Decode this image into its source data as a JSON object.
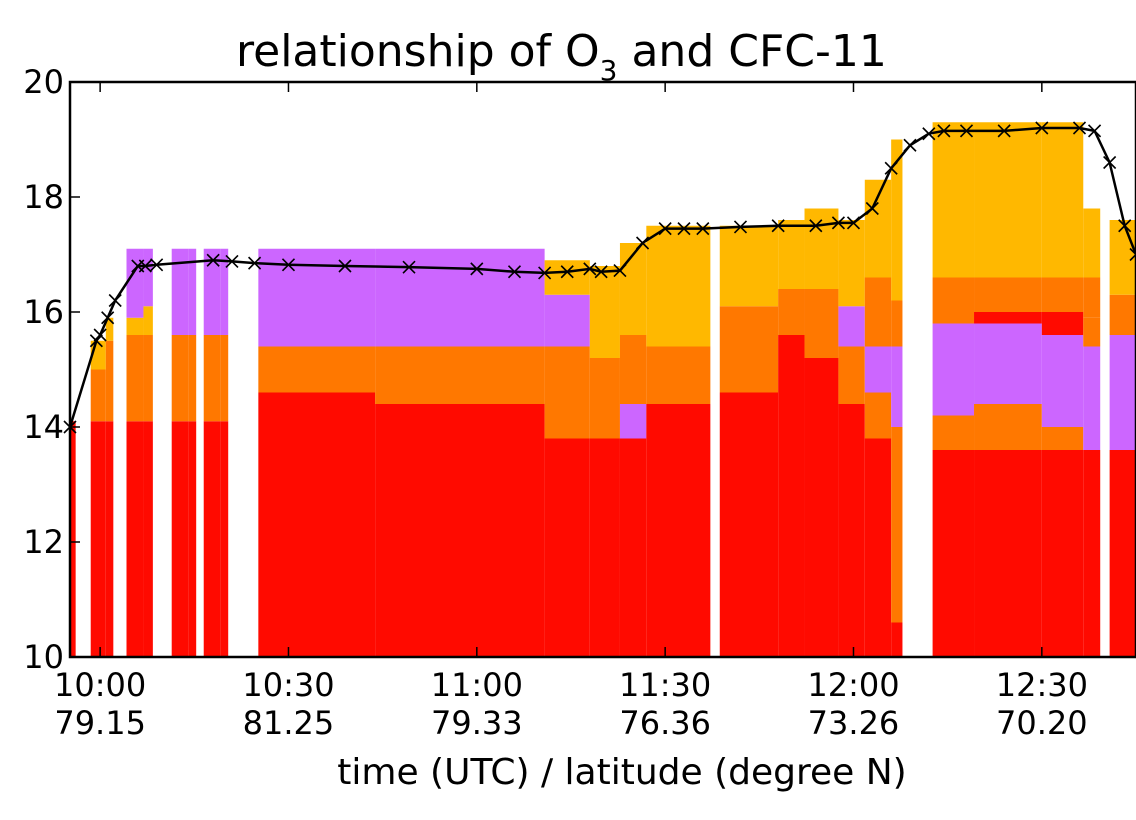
{
  "chart_data": {
    "type": "heatmap",
    "title": "relationship of O",
    "title_sub": "3",
    "title_tail": " and CFC-11",
    "xlabel": "time (UTC) / latitude (degree N)",
    "ylabel": "",
    "ylim": [
      10,
      20
    ],
    "xlim": [
      9.92,
      12.75
    ],
    "grid": false,
    "x_ticks": [
      {
        "x": 10.0,
        "time": "10:00",
        "lat": "79.15"
      },
      {
        "x": 10.5,
        "time": "10:30",
        "lat": "81.25"
      },
      {
        "x": 11.0,
        "time": "11:00",
        "lat": "79.33"
      },
      {
        "x": 11.5,
        "time": "11:30",
        "lat": "76.36"
      },
      {
        "x": 12.0,
        "time": "12:00",
        "lat": "73.26"
      },
      {
        "x": 12.5,
        "time": "12:30",
        "lat": "70.20"
      }
    ],
    "y_ticks": [
      {
        "y": 10,
        "label": "10"
      },
      {
        "y": 12,
        "label": "12"
      },
      {
        "y": 14,
        "label": "14"
      },
      {
        "y": 16,
        "label": "16"
      },
      {
        "y": 18,
        "label": "18"
      },
      {
        "y": 20,
        "label": "20"
      }
    ],
    "colors": {
      "red": "#ff0a00",
      "orange": "#ff7800",
      "violet": "#cc66ff",
      "amber": "#ffb800",
      "line": "#000000"
    },
    "columns": [
      {
        "x0": 9.92,
        "x1": 9.935,
        "layers": [
          {
            "to": 14.1,
            "color": "red"
          }
        ]
      },
      {
        "x0": 9.975,
        "x1": 10.015,
        "layers": [
          {
            "to": 14.1,
            "color": "red"
          },
          {
            "to": 15.0,
            "color": "orange"
          },
          {
            "to": 15.5,
            "color": "amber"
          }
        ]
      },
      {
        "x0": 10.015,
        "x1": 10.035,
        "layers": [
          {
            "to": 14.1,
            "color": "red"
          },
          {
            "to": 15.5,
            "color": "orange"
          },
          {
            "to": 15.9,
            "color": "amber"
          }
        ]
      },
      {
        "x0": 10.07,
        "x1": 10.115,
        "layers": [
          {
            "to": 14.1,
            "color": "red"
          },
          {
            "to": 15.6,
            "color": "orange"
          },
          {
            "to": 15.9,
            "color": "amber"
          },
          {
            "to": 17.1,
            "color": "violet"
          }
        ]
      },
      {
        "x0": 10.115,
        "x1": 10.14,
        "layers": [
          {
            "to": 14.1,
            "color": "red"
          },
          {
            "to": 15.6,
            "color": "orange"
          },
          {
            "to": 16.1,
            "color": "amber"
          },
          {
            "to": 17.1,
            "color": "violet"
          }
        ]
      },
      {
        "x0": 10.19,
        "x1": 10.235,
        "layers": [
          {
            "to": 14.1,
            "color": "red"
          },
          {
            "to": 15.6,
            "color": "orange"
          },
          {
            "to": 17.1,
            "color": "violet"
          }
        ]
      },
      {
        "x0": 10.235,
        "x1": 10.255,
        "layers": [
          {
            "to": 14.1,
            "color": "red"
          },
          {
            "to": 15.6,
            "color": "orange"
          },
          {
            "to": 17.1,
            "color": "violet"
          }
        ]
      },
      {
        "x0": 10.275,
        "x1": 10.32,
        "layers": [
          {
            "to": 14.1,
            "color": "red"
          },
          {
            "to": 15.6,
            "color": "orange"
          },
          {
            "to": 17.1,
            "color": "violet"
          }
        ]
      },
      {
        "x0": 10.32,
        "x1": 10.34,
        "layers": [
          {
            "to": 14.1,
            "color": "red"
          },
          {
            "to": 15.6,
            "color": "orange"
          },
          {
            "to": 17.1,
            "color": "violet"
          }
        ]
      },
      {
        "x0": 10.42,
        "x1": 10.73,
        "layers": [
          {
            "to": 14.6,
            "color": "red"
          },
          {
            "to": 15.4,
            "color": "orange"
          },
          {
            "to": 17.1,
            "color": "violet"
          }
        ]
      },
      {
        "x0": 10.73,
        "x1": 11.18,
        "layers": [
          {
            "to": 14.4,
            "color": "red"
          },
          {
            "to": 15.4,
            "color": "orange"
          },
          {
            "to": 17.1,
            "color": "violet"
          }
        ]
      },
      {
        "x0": 11.18,
        "x1": 11.3,
        "layers": [
          {
            "to": 13.8,
            "color": "red"
          },
          {
            "to": 15.4,
            "color": "orange"
          },
          {
            "to": 16.3,
            "color": "violet"
          },
          {
            "to": 16.9,
            "color": "amber"
          }
        ]
      },
      {
        "x0": 11.3,
        "x1": 11.38,
        "layers": [
          {
            "to": 13.8,
            "color": "red"
          },
          {
            "to": 15.2,
            "color": "orange"
          },
          {
            "to": 16.8,
            "color": "amber"
          }
        ]
      },
      {
        "x0": 11.38,
        "x1": 11.45,
        "layers": [
          {
            "to": 13.8,
            "color": "red"
          },
          {
            "to": 14.4,
            "color": "violet"
          },
          {
            "to": 15.6,
            "color": "orange"
          },
          {
            "to": 17.2,
            "color": "amber"
          }
        ]
      },
      {
        "x0": 11.45,
        "x1": 11.62,
        "layers": [
          {
            "to": 14.4,
            "color": "red"
          },
          {
            "to": 15.4,
            "color": "orange"
          },
          {
            "to": 17.5,
            "color": "amber"
          }
        ]
      },
      {
        "x0": 11.645,
        "x1": 11.8,
        "layers": [
          {
            "to": 14.6,
            "color": "red"
          },
          {
            "to": 16.1,
            "color": "orange"
          },
          {
            "to": 17.5,
            "color": "amber"
          }
        ]
      },
      {
        "x0": 11.8,
        "x1": 11.87,
        "layers": [
          {
            "to": 15.6,
            "color": "red"
          },
          {
            "to": 16.4,
            "color": "orange"
          },
          {
            "to": 17.6,
            "color": "amber"
          }
        ]
      },
      {
        "x0": 11.87,
        "x1": 11.96,
        "layers": [
          {
            "to": 15.2,
            "color": "red"
          },
          {
            "to": 16.4,
            "color": "orange"
          },
          {
            "to": 17.8,
            "color": "amber"
          }
        ]
      },
      {
        "x0": 11.96,
        "x1": 12.03,
        "layers": [
          {
            "to": 14.4,
            "color": "red"
          },
          {
            "to": 15.4,
            "color": "orange"
          },
          {
            "to": 16.1,
            "color": "violet"
          },
          {
            "to": 17.6,
            "color": "amber"
          }
        ]
      },
      {
        "x0": 12.03,
        "x1": 12.1,
        "layers": [
          {
            "to": 13.8,
            "color": "red"
          },
          {
            "to": 14.6,
            "color": "orange"
          },
          {
            "to": 15.4,
            "color": "violet"
          },
          {
            "to": 16.6,
            "color": "orange"
          },
          {
            "to": 18.3,
            "color": "amber"
          }
        ]
      },
      {
        "x0": 12.1,
        "x1": 12.13,
        "layers": [
          {
            "to": 10.6,
            "color": "red"
          },
          {
            "to": 14.0,
            "color": "orange"
          },
          {
            "to": 15.4,
            "color": "violet"
          },
          {
            "to": 16.2,
            "color": "orange"
          },
          {
            "to": 19.0,
            "color": "amber"
          }
        ]
      },
      {
        "x0": 12.21,
        "x1": 12.32,
        "layers": [
          {
            "to": 13.6,
            "color": "red"
          },
          {
            "to": 14.2,
            "color": "orange"
          },
          {
            "to": 15.8,
            "color": "violet"
          },
          {
            "to": 16.6,
            "color": "orange"
          },
          {
            "to": 19.3,
            "color": "amber"
          }
        ]
      },
      {
        "x0": 12.32,
        "x1": 12.5,
        "layers": [
          {
            "to": 13.6,
            "color": "red"
          },
          {
            "to": 14.4,
            "color": "orange"
          },
          {
            "to": 15.8,
            "color": "violet"
          },
          {
            "to": 16.0,
            "color": "red"
          },
          {
            "to": 16.6,
            "color": "orange"
          },
          {
            "to": 19.3,
            "color": "amber"
          }
        ]
      },
      {
        "x0": 12.5,
        "x1": 12.61,
        "layers": [
          {
            "to": 13.6,
            "color": "red"
          },
          {
            "to": 14.0,
            "color": "orange"
          },
          {
            "to": 15.6,
            "color": "violet"
          },
          {
            "to": 16.0,
            "color": "red"
          },
          {
            "to": 16.6,
            "color": "orange"
          },
          {
            "to": 19.3,
            "color": "amber"
          }
        ]
      },
      {
        "x0": 12.61,
        "x1": 12.655,
        "layers": [
          {
            "to": 13.6,
            "color": "red"
          },
          {
            "to": 15.4,
            "color": "violet"
          },
          {
            "to": 15.9,
            "color": "orange"
          },
          {
            "to": 16.6,
            "color": "orange"
          },
          {
            "to": 17.8,
            "color": "amber"
          }
        ]
      },
      {
        "x0": 12.68,
        "x1": 12.75,
        "layers": [
          {
            "to": 13.6,
            "color": "red"
          },
          {
            "to": 15.6,
            "color": "violet"
          },
          {
            "to": 16.3,
            "color": "orange"
          },
          {
            "to": 17.6,
            "color": "amber"
          }
        ]
      }
    ],
    "line": {
      "name": "",
      "x": [
        9.92,
        9.99,
        10.0,
        10.02,
        10.04,
        10.1,
        10.12,
        10.15,
        10.3,
        10.35,
        10.41,
        10.5,
        10.65,
        10.82,
        11.0,
        11.1,
        11.18,
        11.24,
        11.3,
        11.33,
        11.38,
        11.44,
        11.5,
        11.55,
        11.6,
        11.7,
        11.8,
        11.9,
        11.96,
        12.0,
        12.05,
        12.1,
        12.15,
        12.2,
        12.24,
        12.3,
        12.4,
        12.5,
        12.6,
        12.64,
        12.68,
        12.72,
        12.75
      ],
      "y": [
        14.0,
        15.5,
        15.6,
        15.9,
        16.2,
        16.8,
        16.8,
        16.82,
        16.9,
        16.88,
        16.85,
        16.82,
        16.8,
        16.78,
        16.75,
        16.7,
        16.68,
        16.7,
        16.75,
        16.7,
        16.72,
        17.2,
        17.45,
        17.45,
        17.45,
        17.48,
        17.5,
        17.5,
        17.55,
        17.55,
        17.8,
        18.5,
        18.9,
        19.1,
        19.15,
        19.15,
        19.15,
        19.2,
        19.2,
        19.15,
        18.6,
        17.5,
        17.0
      ]
    },
    "marker": "x"
  }
}
